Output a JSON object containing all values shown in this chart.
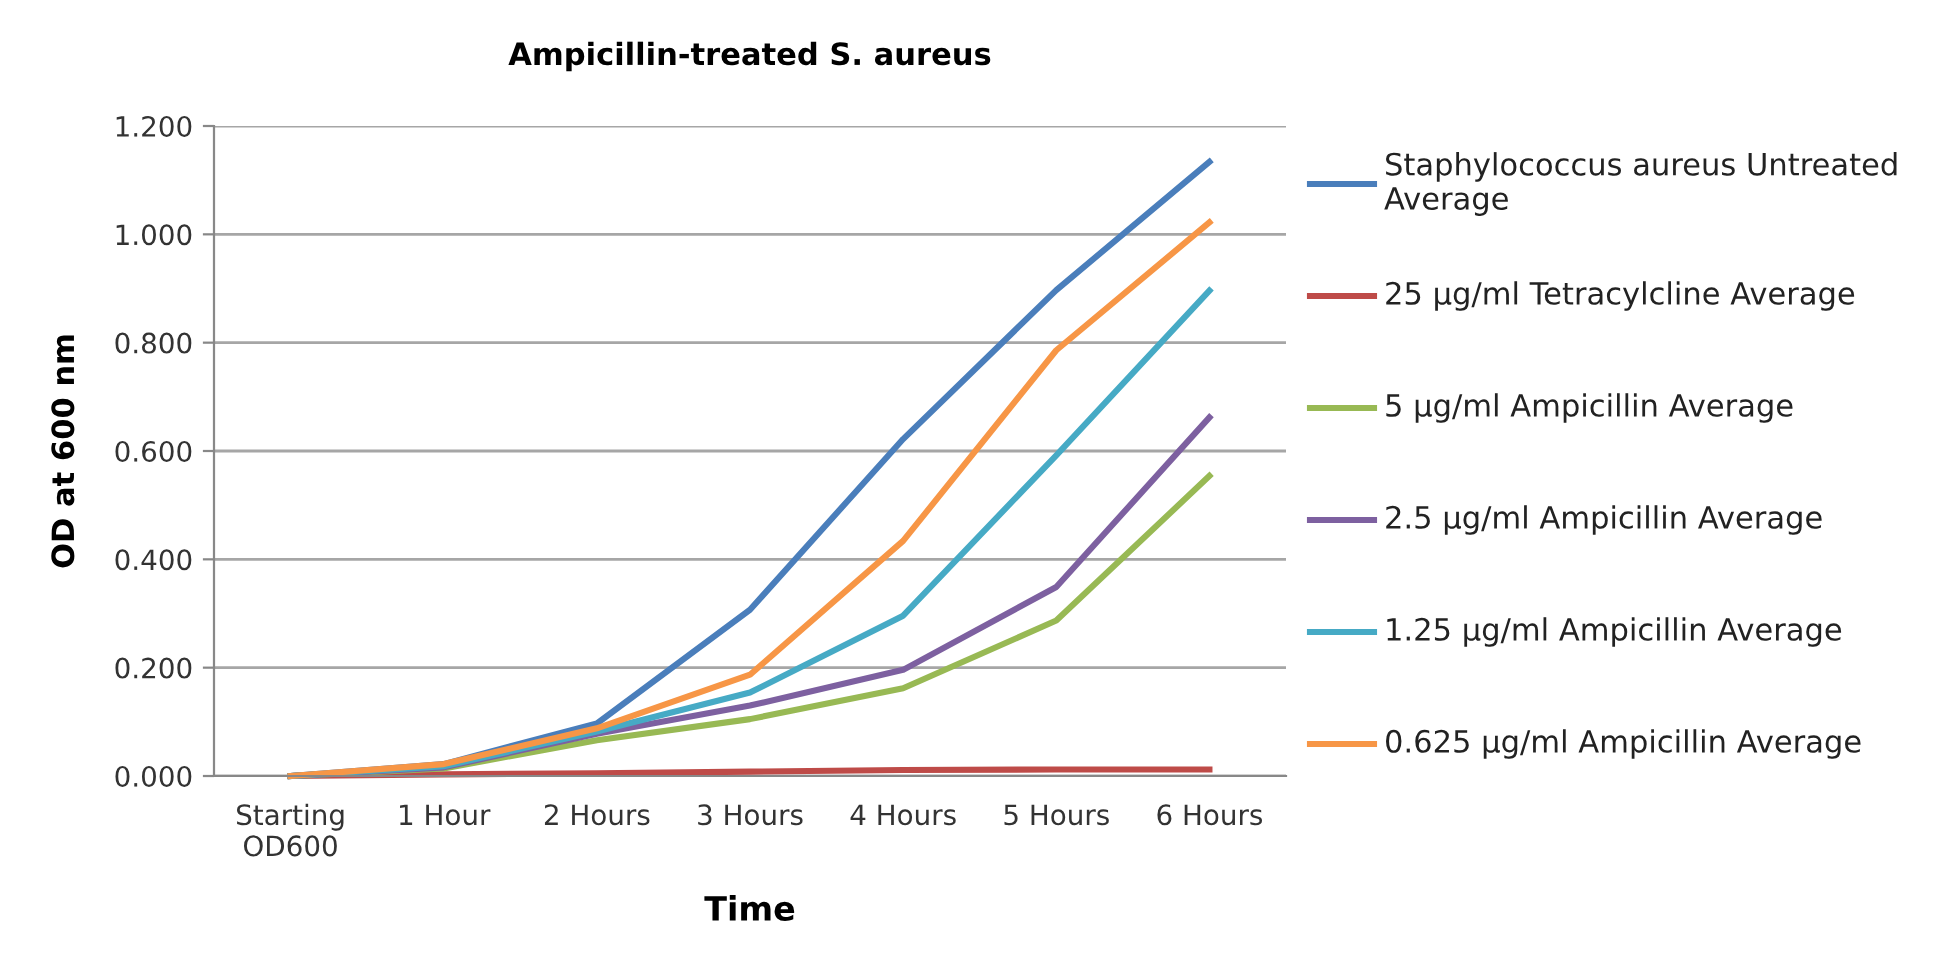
{
  "chart_data": {
    "type": "line",
    "title": "Ampicillin-treated S. aureus",
    "xlabel": "Time",
    "ylabel": "OD at 600 nm",
    "categories": [
      "Starting\nOD600",
      "1 Hour",
      "2 Hours",
      "3 Hours",
      "4 Hours",
      "5 Hours",
      "6 Hours"
    ],
    "series": [
      {
        "name": "Staphylococcus aureus Untreated Average",
        "color": "#4a7ebb",
        "values": [
          0,
          0.022,
          0.097,
          0.307,
          0.622,
          0.897,
          1.134
        ]
      },
      {
        "name": "25 µg/ml Tetracylcline Average",
        "color": "#be4b48",
        "values": [
          0,
          0.003,
          0.005,
          0.008,
          0.011,
          0.012,
          0.012
        ]
      },
      {
        "name": "5 µg/ml Ampicillin Average",
        "color": "#98b954",
        "values": [
          0,
          0.014,
          0.066,
          0.105,
          0.162,
          0.287,
          0.554
        ]
      },
      {
        "name": "2.5 µg/ml Ampicillin Average",
        "color": "#7d60a0",
        "values": [
          0,
          0.016,
          0.078,
          0.13,
          0.196,
          0.349,
          0.662
        ]
      },
      {
        "name": "1.25 µg/ml Ampicillin Average",
        "color": "#46aac5",
        "values": [
          0,
          0.018,
          0.082,
          0.154,
          0.296,
          0.592,
          0.896
        ]
      },
      {
        "name": "0.625 µg/ml Ampicillin Average",
        "color": "#f79646",
        "values": [
          0,
          0.022,
          0.088,
          0.187,
          0.434,
          0.786,
          1.022
        ]
      }
    ],
    "ylim": [
      0,
      1.2
    ],
    "yticks": [
      {
        "value": 0,
        "label": "0.000"
      },
      {
        "value": 0.2,
        "label": "0.200"
      },
      {
        "value": 0.4,
        "label": "0.400"
      },
      {
        "value": 0.6,
        "label": "0.600"
      },
      {
        "value": 0.8,
        "label": "0.800"
      },
      {
        "value": 1.0,
        "label": "1.000"
      },
      {
        "value": 1.2,
        "label": "1.200"
      }
    ],
    "grid": "y",
    "legend": "right",
    "marker": "none",
    "line_style": "solid"
  }
}
